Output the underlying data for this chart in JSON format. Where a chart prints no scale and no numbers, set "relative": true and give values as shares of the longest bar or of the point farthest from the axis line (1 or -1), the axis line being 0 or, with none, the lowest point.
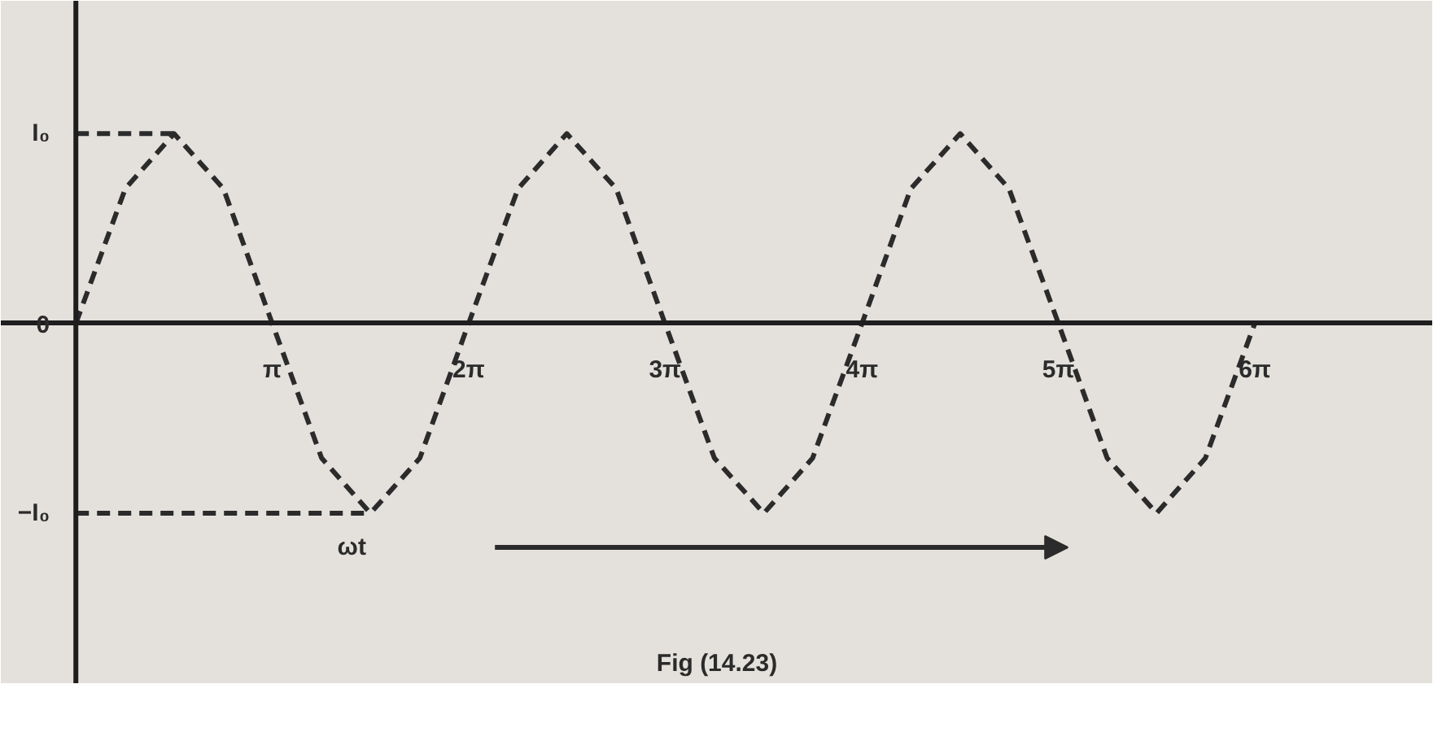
{
  "chart_data": {
    "type": "line",
    "relative": true,
    "line_style": "dashed",
    "xlim": [
      -1.2,
      21.7
    ],
    "xticks": [
      {
        "value": 3.14,
        "label": "π"
      },
      {
        "value": 6.28,
        "label": "2π"
      },
      {
        "value": 9.42,
        "label": "3π"
      },
      {
        "value": 12.57,
        "label": "4π"
      },
      {
        "value": 15.71,
        "label": "5π"
      },
      {
        "value": 18.85,
        "label": "6π"
      }
    ],
    "series": [
      {
        "color": "#2b2b2b",
        "x": [
          0,
          0.79,
          1.57,
          2.36,
          3.14,
          3.93,
          4.71,
          5.5,
          6.28,
          7.07,
          7.85,
          8.64,
          9.42,
          10.21,
          11.0,
          11.78,
          12.57,
          13.35,
          14.14,
          14.92,
          15.71,
          16.49,
          17.28,
          18.06,
          18.85
        ],
        "values": [
          0,
          0.71,
          1,
          0.71,
          0,
          -0.71,
          -1,
          -0.71,
          0,
          0.71,
          1,
          0.71,
          0,
          -0.71,
          -1,
          -0.71,
          0,
          0.71,
          1,
          0.71,
          0,
          -0.71,
          -1,
          -0.71,
          0
        ]
      },
      {
        "color": "#2b2b2b",
        "x": [
          0,
          1.57
        ],
        "values": [
          1,
          1
        ]
      },
      {
        "color": "#2b2b2b",
        "x": [
          0,
          4.71
        ],
        "values": [
          -1,
          -1
        ]
      }
    ],
    "annotations": [
      "I₀",
      "0",
      "−I₀",
      "ωt",
      "Fig (14.23)"
    ]
  }
}
